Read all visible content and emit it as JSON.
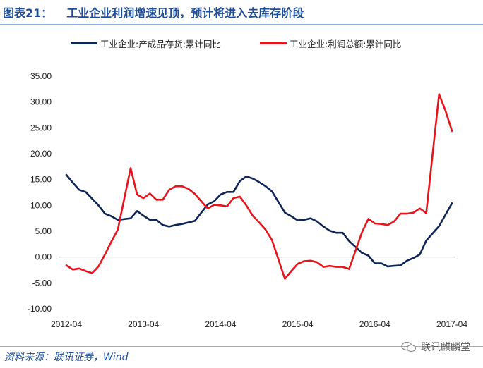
{
  "figure": {
    "label": "图表21：",
    "title": "工业企业利润增速见顶，预计将进入去库存阶段"
  },
  "source": "资料来源：联讯证券，Wind",
  "watermark": "联讯麒麟堂",
  "colors": {
    "title": "#1f4e96",
    "series_inventory": "#0e2557",
    "series_profit": "#e8141b",
    "rule": "#8faed8"
  },
  "chart_data": {
    "type": "line",
    "ylim": [
      -10,
      35
    ],
    "yticks": [
      "35.00",
      "30.00",
      "25.00",
      "20.00",
      "15.00",
      "10.00",
      "5.00",
      "0.00",
      "-5.00",
      "-10.00"
    ],
    "ytick_values": [
      35,
      30,
      25,
      20,
      15,
      10,
      5,
      0,
      -5,
      -10
    ],
    "x_tick_labels": [
      "2012-04",
      "2013-04",
      "2014-04",
      "2015-04",
      "2016-04",
      "2017-04"
    ],
    "x_tick_dates": [
      "2012-04",
      "2013-04",
      "2014-04",
      "2015-04",
      "2016-04",
      "2017-04"
    ],
    "grid": false,
    "legend_position": "top",
    "series": [
      {
        "name": "工业企业:产成品存货:累计同比",
        "color": "#0e2557",
        "x": [
          "2012-04",
          "2012-05",
          "2012-06",
          "2012-07",
          "2012-08",
          "2012-09",
          "2012-10",
          "2012-11",
          "2012-12",
          "2013-02",
          "2013-03",
          "2013-04",
          "2013-05",
          "2013-06",
          "2013-07",
          "2013-08",
          "2013-09",
          "2013-10",
          "2013-11",
          "2013-12",
          "2014-02",
          "2014-03",
          "2014-04",
          "2014-05",
          "2014-06",
          "2014-07",
          "2014-08",
          "2014-09",
          "2014-10",
          "2014-11",
          "2014-12",
          "2015-02",
          "2015-03",
          "2015-04",
          "2015-05",
          "2015-06",
          "2015-07",
          "2015-08",
          "2015-09",
          "2015-10",
          "2015-11",
          "2015-12",
          "2016-02",
          "2016-03",
          "2016-04",
          "2016-05",
          "2016-06",
          "2016-07",
          "2016-08",
          "2016-09",
          "2016-10",
          "2016-11",
          "2016-12",
          "2017-02",
          "2017-03",
          "2017-04"
        ],
        "values": [
          15.9,
          14.4,
          13.0,
          12.6,
          11.3,
          10.0,
          8.4,
          7.9,
          7.2,
          7.5,
          8.9,
          8.0,
          7.2,
          7.2,
          6.2,
          5.9,
          6.2,
          6.4,
          6.7,
          7.0,
          10.2,
          10.8,
          12.1,
          12.6,
          12.6,
          14.7,
          15.6,
          15.2,
          14.5,
          13.7,
          12.7,
          8.6,
          7.9,
          7.1,
          7.2,
          7.5,
          6.9,
          5.9,
          5.1,
          4.7,
          4.7,
          3.1,
          0.8,
          0.3,
          -1.2,
          -1.2,
          -1.8,
          -1.7,
          -1.6,
          -0.7,
          -0.2,
          0.5,
          3.2,
          6.0,
          8.2,
          10.4
        ]
      },
      {
        "name": "工业企业:利润总额:累计同比",
        "color": "#e8141b",
        "x": [
          "2012-04",
          "2012-05",
          "2012-06",
          "2012-07",
          "2012-08",
          "2012-09",
          "2012-10",
          "2012-11",
          "2012-12",
          "2013-02",
          "2013-03",
          "2013-04",
          "2013-05",
          "2013-06",
          "2013-07",
          "2013-08",
          "2013-09",
          "2013-10",
          "2013-11",
          "2013-12",
          "2014-02",
          "2014-03",
          "2014-04",
          "2014-05",
          "2014-06",
          "2014-07",
          "2014-08",
          "2014-09",
          "2014-10",
          "2014-11",
          "2014-12",
          "2015-02",
          "2015-03",
          "2015-04",
          "2015-05",
          "2015-06",
          "2015-07",
          "2015-08",
          "2015-09",
          "2015-10",
          "2015-11",
          "2015-12",
          "2016-02",
          "2016-03",
          "2016-04",
          "2016-05",
          "2016-06",
          "2016-07",
          "2016-08",
          "2016-09",
          "2016-10",
          "2016-11",
          "2016-12",
          "2017-02",
          "2017-03",
          "2017-04"
        ],
        "values": [
          -1.6,
          -2.4,
          -2.2,
          -2.7,
          -3.1,
          -1.8,
          0.5,
          3.0,
          5.3,
          17.2,
          12.1,
          11.4,
          12.3,
          11.1,
          11.1,
          13.0,
          13.7,
          13.7,
          13.2,
          12.2,
          9.4,
          10.1,
          10.0,
          9.8,
          11.4,
          11.7,
          10.0,
          8.0,
          6.7,
          5.3,
          3.3,
          -4.2,
          -2.7,
          -1.3,
          -0.8,
          -0.7,
          -1.0,
          -1.9,
          -1.7,
          -1.9,
          -1.9,
          -2.3,
          4.8,
          7.4,
          6.5,
          6.4,
          6.2,
          6.9,
          8.4,
          8.4,
          8.6,
          9.4,
          8.5,
          31.5,
          28.3,
          24.4
        ]
      }
    ]
  }
}
